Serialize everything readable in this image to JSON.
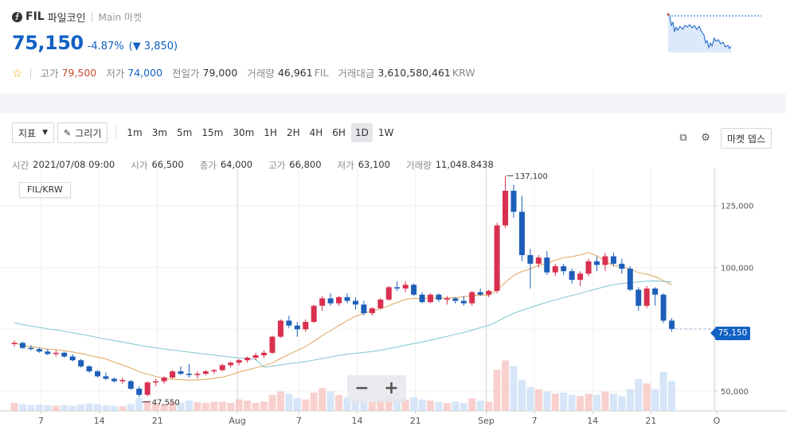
{
  "header": {
    "coin_icon": "filecoin-icon",
    "symbol": "FIL",
    "name": "파일코인",
    "separator": "|",
    "market": "Main 마켓",
    "price": "75,150",
    "change_rate": "-4.87%",
    "change_amount": "(▼ 3,850)",
    "favorite_icon": "star-icon",
    "stats": [
      {
        "label": "고가",
        "value": "79,500",
        "unit": ""
      },
      {
        "label": "저가",
        "value": "74,000",
        "unit": ""
      },
      {
        "label": "전일가",
        "value": "79,000",
        "unit": ""
      },
      {
        "label": "거래량",
        "value": "46,961",
        "unit": "FIL"
      },
      {
        "label": "거래대금",
        "value": "3,610,580,461",
        "unit": "KRW"
      }
    ]
  },
  "toolbar": {
    "indicator_label": "지표",
    "draw_label": "그리기",
    "intervals": [
      "1m",
      "3m",
      "5m",
      "15m",
      "30m",
      "1H",
      "2H",
      "4H",
      "6H",
      "1D",
      "1W"
    ],
    "active_interval": "1D",
    "depth_label": "마켓 뎁스",
    "popout_icon": "external-link-icon",
    "settings_icon": "gear-icon"
  },
  "ohlc": {
    "time_label": "시간",
    "time": "2021/07/08 09:00",
    "open_label": "시가",
    "open": "66,500",
    "close_label": "종가",
    "close": "64,000",
    "high_label": "고가",
    "high": "66,800",
    "low_label": "저가",
    "low": "63,100",
    "volume_label": "거래량",
    "volume": "11,048.8438"
  },
  "chart_data": {
    "type": "candlestick",
    "pair": "FIL/KRW",
    "y_ticks": [
      "125,000",
      "100,000",
      "75,000",
      "50,000"
    ],
    "x_ticks": [
      "7",
      "14",
      "21",
      "Aug",
      "7",
      "14",
      "21",
      "Sep",
      "7",
      "14",
      "21",
      "O"
    ],
    "max_annotation": "137,100",
    "min_annotation": "47,550",
    "last_price": "75,150",
    "ylim": [
      42000,
      140000
    ],
    "candles": [
      [
        69000,
        70500,
        68000,
        69500
      ],
      [
        69500,
        70000,
        67000,
        67500
      ],
      [
        67500,
        68500,
        66500,
        67000
      ],
      [
        67000,
        67500,
        65500,
        66000
      ],
      [
        66000,
        67000,
        64500,
        65000
      ],
      [
        65000,
        66500,
        64000,
        65500
      ],
      [
        65500,
        66000,
        63500,
        64000
      ],
      [
        64000,
        65000,
        62000,
        62500
      ],
      [
        62500,
        63000,
        59500,
        60000
      ],
      [
        60000,
        60500,
        57500,
        58000
      ],
      [
        58000,
        58500,
        55500,
        56000
      ],
      [
        56000,
        57500,
        54500,
        55000
      ],
      [
        55000,
        55500,
        53500,
        54000
      ],
      [
        54000,
        55500,
        53000,
        54500
      ],
      [
        54000,
        54500,
        50500,
        51000
      ],
      [
        51000,
        52000,
        47550,
        48500
      ],
      [
        48500,
        54000,
        48000,
        53500
      ],
      [
        53500,
        55000,
        52000,
        54000
      ],
      [
        54000,
        56000,
        53000,
        55500
      ],
      [
        55500,
        58500,
        55000,
        58000
      ],
      [
        58000,
        60000,
        56500,
        57000
      ],
      [
        57000,
        61000,
        55500,
        56500
      ],
      [
        56500,
        58000,
        55000,
        57000
      ],
      [
        57000,
        58500,
        56500,
        58000
      ],
      [
        58000,
        59000,
        57000,
        58500
      ],
      [
        58500,
        61000,
        58000,
        60500
      ],
      [
        60500,
        62000,
        59500,
        61500
      ],
      [
        61500,
        63000,
        60500,
        62500
      ],
      [
        62500,
        64000,
        61500,
        63500
      ],
      [
        63500,
        65500,
        62500,
        64500
      ],
      [
        64500,
        66500,
        63500,
        65500
      ],
      [
        65500,
        72500,
        65000,
        72000
      ],
      [
        72000,
        79000,
        71500,
        78500
      ],
      [
        78500,
        80500,
        75500,
        76500
      ],
      [
        76500,
        78000,
        72000,
        75000
      ],
      [
        75000,
        79000,
        74000,
        78000
      ],
      [
        78000,
        85000,
        77500,
        84500
      ],
      [
        84500,
        88500,
        82500,
        87500
      ],
      [
        87500,
        89500,
        84500,
        85500
      ],
      [
        85500,
        88500,
        84500,
        88000
      ],
      [
        88000,
        89500,
        85500,
        86500
      ],
      [
        86500,
        88000,
        83000,
        85000
      ],
      [
        85000,
        86500,
        80500,
        81500
      ],
      [
        81500,
        84000,
        80500,
        83500
      ],
      [
        83500,
        87500,
        83000,
        87000
      ],
      [
        87000,
        92500,
        86500,
        92000
      ],
      [
        92000,
        94500,
        90500,
        91500
      ],
      [
        91500,
        94500,
        90000,
        93000
      ],
      [
        93000,
        93500,
        88500,
        89000
      ],
      [
        89000,
        90000,
        85500,
        86000
      ],
      [
        86000,
        89500,
        85500,
        89000
      ],
      [
        89000,
        89500,
        86000,
        87000
      ],
      [
        87000,
        88500,
        85000,
        87500
      ],
      [
        87500,
        88000,
        85500,
        86500
      ],
      [
        86500,
        88500,
        84500,
        85500
      ],
      [
        85500,
        90500,
        84500,
        90000
      ],
      [
        90000,
        91500,
        88500,
        89000
      ],
      [
        89000,
        91000,
        88000,
        90500
      ],
      [
        90500,
        118000,
        89500,
        117000
      ],
      [
        117000,
        137100,
        116000,
        131000
      ],
      [
        131000,
        133500,
        120000,
        122500
      ],
      [
        122500,
        129000,
        102500,
        105000
      ],
      [
        105000,
        107500,
        91500,
        101500
      ],
      [
        101500,
        105000,
        100000,
        104000
      ],
      [
        104000,
        106500,
        97000,
        98000
      ],
      [
        98000,
        101500,
        96500,
        100500
      ],
      [
        100500,
        101500,
        97000,
        98500
      ],
      [
        98500,
        99500,
        93500,
        95000
      ],
      [
        95000,
        98500,
        92500,
        97500
      ],
      [
        97500,
        103500,
        96500,
        102500
      ],
      [
        102500,
        104500,
        98500,
        101000
      ],
      [
        101000,
        106000,
        98500,
        104500
      ],
      [
        104500,
        106000,
        100500,
        101500
      ],
      [
        101500,
        103500,
        97500,
        99500
      ],
      [
        99500,
        100500,
        90500,
        91000
      ],
      [
        91000,
        92000,
        82500,
        84500
      ],
      [
        84500,
        92500,
        83500,
        91500
      ],
      [
        91500,
        92000,
        84500,
        89000
      ],
      [
        89000,
        89500,
        77500,
        78500
      ],
      [
        78500,
        79500,
        74000,
        75150
      ]
    ],
    "volumes": [
      14,
      12,
      10,
      11,
      10,
      9,
      10,
      9,
      11,
      13,
      12,
      10,
      9,
      8,
      12,
      22,
      18,
      14,
      12,
      16,
      14,
      18,
      15,
      14,
      16,
      16,
      14,
      20,
      18,
      14,
      16,
      28,
      34,
      30,
      22,
      20,
      32,
      40,
      34,
      28,
      24,
      20,
      18,
      16,
      20,
      26,
      22,
      20,
      24,
      20,
      18,
      16,
      14,
      16,
      14,
      22,
      18,
      16,
      72,
      88,
      78,
      54,
      42,
      38,
      34,
      30,
      32,
      28,
      26,
      30,
      28,
      34,
      30,
      26,
      38,
      56,
      48,
      38,
      68,
      52
    ]
  }
}
